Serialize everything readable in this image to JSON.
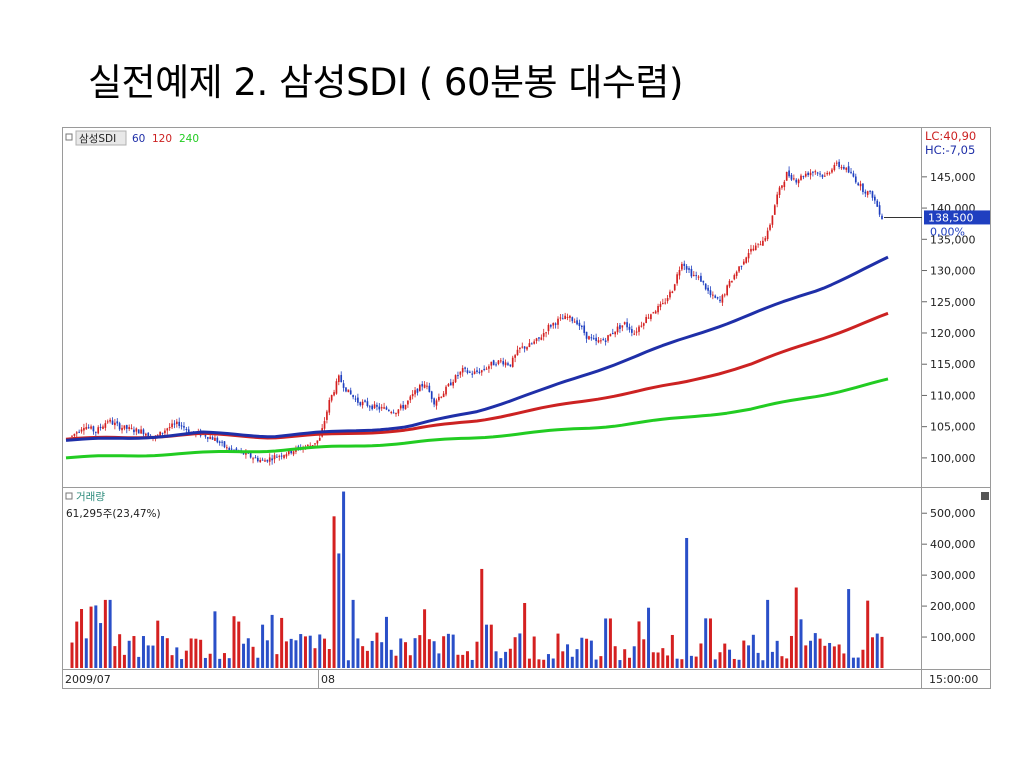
{
  "slide": {
    "title": "실전예제 2. 삼성SDI ( 60분봉 대수렴)"
  },
  "chart_data": {
    "type": "candlestick",
    "price_panel": {
      "label": "삼성SDI",
      "ma_legend": [
        {
          "name": "60",
          "color": "#1f2fa8"
        },
        {
          "name": "120",
          "color": "#cc2222"
        },
        {
          "name": "240",
          "color": "#22cc22"
        }
      ],
      "info_lines": [
        "LC:40,90",
        "HC:-7,05"
      ],
      "current_price_label": "138,500",
      "current_change_label": "0,00%",
      "y_tick_labels": [
        "145,000",
        "140,000",
        "135,000",
        "130,000",
        "125,000",
        "120,000",
        "115,000",
        "110,000",
        "105,000",
        "100,000"
      ],
      "y_ticks": [
        145000,
        140000,
        135000,
        130000,
        125000,
        120000,
        115000,
        110000,
        105000,
        100000
      ],
      "ylim": [
        95500,
        152500
      ],
      "price_approx": [
        [
          0,
          103500
        ],
        [
          5,
          105200
        ],
        [
          10,
          104200
        ],
        [
          15,
          106000
        ],
        [
          20,
          105000
        ],
        [
          25,
          104500
        ],
        [
          30,
          104200
        ],
        [
          35,
          103200
        ],
        [
          40,
          104800
        ],
        [
          45,
          105500
        ],
        [
          50,
          104000
        ],
        [
          55,
          103800
        ],
        [
          60,
          103000
        ],
        [
          65,
          101500
        ],
        [
          70,
          101000
        ],
        [
          75,
          100200
        ],
        [
          80,
          99500
        ],
        [
          85,
          100200
        ],
        [
          90,
          100800
        ],
        [
          95,
          101500
        ],
        [
          100,
          102000
        ],
        [
          104,
          103000
        ],
        [
          108,
          109000
        ],
        [
          112,
          112800
        ],
        [
          116,
          110500
        ],
        [
          120,
          109000
        ],
        [
          124,
          108500
        ],
        [
          128,
          108000
        ],
        [
          132,
          107800
        ],
        [
          136,
          107500
        ],
        [
          140,
          108500
        ],
        [
          144,
          110500
        ],
        [
          148,
          112000
        ],
        [
          152,
          109000
        ],
        [
          156,
          110500
        ],
        [
          160,
          112500
        ],
        [
          164,
          114000
        ],
        [
          168,
          113500
        ],
        [
          172,
          114000
        ],
        [
          176,
          115000
        ],
        [
          180,
          115500
        ],
        [
          184,
          115000
        ],
        [
          188,
          117500
        ],
        [
          192,
          118000
        ],
        [
          196,
          119000
        ],
        [
          200,
          121000
        ],
        [
          204,
          122000
        ],
        [
          208,
          122500
        ],
        [
          212,
          121800
        ],
        [
          216,
          119500
        ],
        [
          220,
          118500
        ],
        [
          224,
          119000
        ],
        [
          228,
          120500
        ],
        [
          232,
          121500
        ],
        [
          236,
          120000
        ],
        [
          240,
          122000
        ],
        [
          244,
          123500
        ],
        [
          248,
          124500
        ],
        [
          252,
          127000
        ],
        [
          256,
          131500
        ],
        [
          260,
          129500
        ],
        [
          264,
          128500
        ],
        [
          268,
          126000
        ],
        [
          272,
          125000
        ],
        [
          276,
          128000
        ],
        [
          280,
          130500
        ],
        [
          284,
          133000
        ],
        [
          288,
          134000
        ],
        [
          292,
          136000
        ],
        [
          296,
          142000
        ],
        [
          300,
          145500
        ],
        [
          304,
          144500
        ],
        [
          308,
          145500
        ],
        [
          312,
          146000
        ],
        [
          316,
          145000
        ],
        [
          320,
          147000
        ],
        [
          324,
          146500
        ],
        [
          328,
          145000
        ],
        [
          332,
          143000
        ],
        [
          336,
          142000
        ],
        [
          340,
          138500
        ]
      ],
      "ma60": [
        [
          0,
          102800
        ],
        [
          34,
          103200
        ],
        [
          68,
          104000
        ],
        [
          102,
          103500
        ],
        [
          136,
          104200
        ],
        [
          170,
          105000
        ],
        [
          204,
          107500
        ],
        [
          238,
          111000
        ],
        [
          272,
          115000
        ],
        [
          306,
          119000
        ],
        [
          340,
          123000
        ],
        [
          374,
          127000
        ],
        [
          408,
          132000
        ]
      ],
      "ma120": [
        [
          0,
          103000
        ],
        [
          34,
          103300
        ],
        [
          68,
          103800
        ],
        [
          102,
          103300
        ],
        [
          136,
          103800
        ],
        [
          170,
          104500
        ],
        [
          204,
          106000
        ],
        [
          238,
          108000
        ],
        [
          272,
          110000
        ],
        [
          306,
          112000
        ],
        [
          340,
          115000
        ],
        [
          374,
          119000
        ],
        [
          408,
          123000
        ]
      ],
      "ma240": [
        [
          0,
          100000
        ],
        [
          34,
          100400
        ],
        [
          68,
          100800
        ],
        [
          102,
          101200
        ],
        [
          136,
          101800
        ],
        [
          170,
          102400
        ],
        [
          204,
          103300
        ],
        [
          238,
          104200
        ],
        [
          272,
          105200
        ],
        [
          306,
          106400
        ],
        [
          340,
          107800
        ],
        [
          374,
          110000
        ],
        [
          408,
          112500
        ]
      ]
    },
    "volume_panel": {
      "label": "거래량",
      "info": "61,295주(23,47%)",
      "y_tick_labels": [
        "500,000",
        "400,000",
        "300,000",
        "200,000",
        "100,000"
      ],
      "y_ticks": [
        500000,
        400000,
        300000,
        200000,
        100000
      ],
      "ylim": [
        0,
        575000
      ],
      "spikes": [
        [
          3,
          150000
        ],
        [
          15,
          220000
        ],
        [
          70,
          150000
        ],
        [
          80,
          140000
        ],
        [
          110,
          490000
        ],
        [
          112,
          370000
        ],
        [
          114,
          570000
        ],
        [
          118,
          220000
        ],
        [
          175,
          140000
        ],
        [
          172,
          320000
        ],
        [
          190,
          210000
        ],
        [
          225,
          160000
        ],
        [
          258,
          420000
        ],
        [
          268,
          160000
        ],
        [
          292,
          220000
        ],
        [
          305,
          260000
        ],
        [
          326,
          255000
        ]
      ]
    },
    "x_tick_labels": [
      "2009/07",
      "08"
    ],
    "time_label": "15:00:00"
  }
}
